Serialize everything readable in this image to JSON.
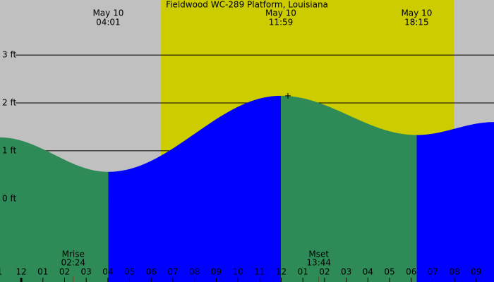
{
  "chart_data": {
    "type": "tide",
    "title": "Fieldwood WC-289 Platform, Louisiana",
    "xlim": [
      -0.98,
      21.82
    ],
    "ylim": [
      -1.74,
      4.15
    ],
    "yticks": [
      {
        "value": 0,
        "label": "0 ft"
      },
      {
        "value": 1,
        "label": "1 ft"
      },
      {
        "value": 2,
        "label": "2 ft"
      },
      {
        "value": 3,
        "label": "3 ft"
      }
    ],
    "xticks": [
      {
        "value": -1,
        "label": "1"
      },
      {
        "value": 0,
        "label": "12"
      },
      {
        "value": 1,
        "label": "01"
      },
      {
        "value": 2,
        "label": "02"
      },
      {
        "value": 3,
        "label": "03"
      },
      {
        "value": 4,
        "label": "04"
      },
      {
        "value": 5,
        "label": "05"
      },
      {
        "value": 6,
        "label": "06"
      },
      {
        "value": 7,
        "label": "07"
      },
      {
        "value": 8,
        "label": "08"
      },
      {
        "value": 9,
        "label": "09"
      },
      {
        "value": 10,
        "label": "10"
      },
      {
        "value": 11,
        "label": "11"
      },
      {
        "value": 12,
        "label": "12"
      },
      {
        "value": 13,
        "label": "01"
      },
      {
        "value": 14,
        "label": "02"
      },
      {
        "value": 15,
        "label": "03"
      },
      {
        "value": 16,
        "label": "04"
      },
      {
        "value": 17,
        "label": "05"
      },
      {
        "value": 18,
        "label": "06"
      },
      {
        "value": 19,
        "label": "07"
      },
      {
        "value": 20,
        "label": "08"
      },
      {
        "value": 21,
        "label": "09"
      }
    ],
    "daylight": [
      6.45,
      19.97
    ],
    "start_height": 1.28,
    "end_height": 1.6,
    "extremes": [
      {
        "date": "May 10",
        "time": "04:01",
        "height": 0.56
      },
      {
        "date": "May 10",
        "time": "11:59",
        "height": 2.15
      },
      {
        "date": "May 10",
        "time": "18:15",
        "height": 1.33
      }
    ],
    "moon": [
      {
        "label": "Mrise",
        "time": "02:24"
      },
      {
        "label": "Mset",
        "time": "13:44"
      }
    ],
    "colors": {
      "night": "#c0c0c0",
      "day": "#cccc00",
      "rising": "#0000ff",
      "falling": "#2e8b57",
      "moon": "#ff0000"
    }
  }
}
